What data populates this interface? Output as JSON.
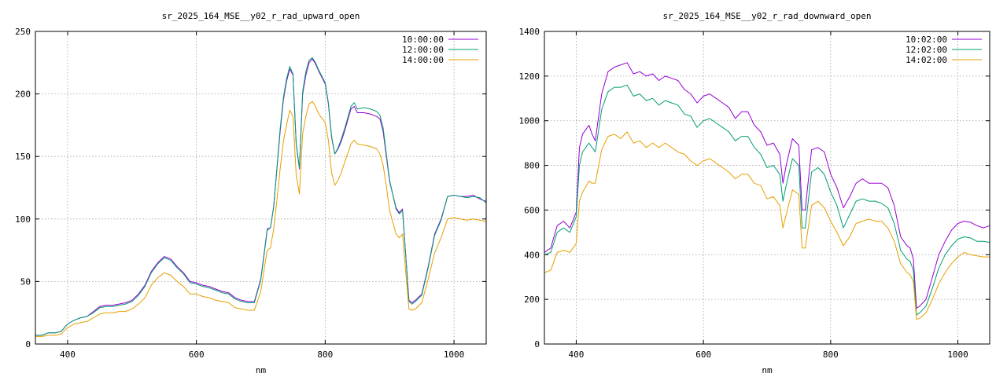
{
  "chart_data": [
    {
      "type": "line",
      "title": "sr_2025_164_MSE__y02_r_rad_upward_open",
      "xlabel": "nm",
      "ylabel": "",
      "xlim": [
        350,
        1050
      ],
      "ylim": [
        0,
        250
      ],
      "xticks": [
        400,
        600,
        800,
        1000
      ],
      "yticks": [
        0,
        50,
        100,
        150,
        200,
        250
      ],
      "grid": true,
      "legend": "top-right",
      "series": [
        {
          "name": "10:00:00",
          "color": "#9400d3",
          "x": [
            350,
            360,
            370,
            380,
            390,
            400,
            410,
            420,
            430,
            440,
            450,
            460,
            470,
            480,
            490,
            500,
            510,
            520,
            530,
            540,
            550,
            560,
            570,
            580,
            590,
            600,
            610,
            620,
            630,
            640,
            650,
            660,
            670,
            680,
            690,
            700,
            705,
            710,
            715,
            720,
            725,
            730,
            735,
            740,
            745,
            750,
            755,
            760,
            765,
            770,
            775,
            780,
            785,
            790,
            800,
            805,
            810,
            815,
            820,
            825,
            830,
            840,
            845,
            850,
            860,
            870,
            880,
            885,
            890,
            895,
            900,
            910,
            915,
            920,
            930,
            935,
            940,
            950,
            960,
            970,
            980,
            990,
            1000,
            1010,
            1020,
            1030,
            1040,
            1050
          ],
          "y": [
            7,
            7,
            9,
            9,
            10,
            16,
            19,
            21,
            22,
            26,
            30,
            31,
            31,
            32,
            33,
            35,
            40,
            47,
            58,
            65,
            70,
            68,
            62,
            57,
            50,
            49,
            47,
            46,
            44,
            42,
            41,
            37,
            35,
            34,
            34,
            52,
            72,
            92,
            93,
            110,
            140,
            170,
            195,
            210,
            220,
            215,
            160,
            140,
            200,
            215,
            225,
            228,
            224,
            218,
            208,
            192,
            165,
            152,
            156,
            162,
            170,
            188,
            190,
            185,
            185,
            184,
            182,
            180,
            170,
            150,
            130,
            109,
            105,
            108,
            35,
            33,
            35,
            40,
            62,
            88,
            100,
            118,
            119,
            118,
            118,
            119,
            116,
            114
          ]
        },
        {
          "name": "12:00:00",
          "color": "#009e73",
          "x": [
            350,
            360,
            370,
            380,
            390,
            400,
            410,
            420,
            430,
            440,
            450,
            460,
            470,
            480,
            490,
            500,
            510,
            520,
            530,
            540,
            550,
            560,
            570,
            580,
            590,
            600,
            610,
            620,
            630,
            640,
            650,
            660,
            670,
            680,
            690,
            700,
            705,
            710,
            715,
            720,
            725,
            730,
            735,
            740,
            745,
            750,
            755,
            760,
            765,
            770,
            775,
            780,
            785,
            790,
            800,
            805,
            810,
            815,
            820,
            825,
            830,
            840,
            845,
            850,
            860,
            870,
            880,
            885,
            890,
            895,
            900,
            910,
            915,
            920,
            930,
            935,
            940,
            950,
            960,
            970,
            980,
            990,
            1000,
            1010,
            1020,
            1030,
            1040,
            1050
          ],
          "y": [
            7,
            7,
            9,
            9,
            10,
            16,
            19,
            21,
            22,
            25,
            29,
            30,
            30,
            31,
            32,
            34,
            39,
            46,
            57,
            64,
            69,
            67,
            61,
            56,
            49,
            48,
            46,
            45,
            43,
            41,
            40,
            36,
            34,
            33,
            33,
            51,
            71,
            91,
            93,
            110,
            141,
            172,
            197,
            212,
            222,
            216,
            160,
            141,
            202,
            218,
            227,
            229,
            225,
            219,
            209,
            193,
            166,
            152,
            157,
            164,
            172,
            190,
            193,
            188,
            189,
            188,
            186,
            183,
            173,
            152,
            131,
            108,
            104,
            107,
            34,
            32,
            34,
            39,
            61,
            87,
            99,
            118,
            119,
            118,
            117,
            118,
            117,
            113
          ]
        },
        {
          "name": "14:00:00",
          "color": "#e69f00",
          "x": [
            350,
            360,
            370,
            380,
            390,
            400,
            410,
            420,
            430,
            440,
            450,
            460,
            470,
            480,
            490,
            500,
            510,
            520,
            530,
            540,
            550,
            560,
            570,
            580,
            590,
            600,
            610,
            620,
            630,
            640,
            650,
            660,
            670,
            680,
            690,
            700,
            705,
            710,
            715,
            720,
            725,
            730,
            735,
            740,
            745,
            750,
            755,
            760,
            765,
            770,
            775,
            780,
            785,
            790,
            800,
            805,
            810,
            815,
            820,
            825,
            830,
            840,
            845,
            850,
            860,
            870,
            880,
            885,
            890,
            895,
            900,
            910,
            915,
            920,
            930,
            935,
            940,
            950,
            960,
            970,
            980,
            990,
            1000,
            1010,
            1020,
            1030,
            1040,
            1050
          ],
          "y": [
            6,
            6,
            7,
            7,
            8,
            13,
            16,
            17,
            18,
            21,
            24,
            25,
            25,
            26,
            26,
            28,
            32,
            37,
            47,
            53,
            57,
            55,
            50,
            46,
            40,
            40,
            38,
            37,
            35,
            34,
            33,
            29,
            28,
            27,
            27,
            42,
            59,
            75,
            77,
            92,
            115,
            140,
            162,
            175,
            187,
            182,
            135,
            120,
            168,
            182,
            192,
            194,
            190,
            184,
            177,
            163,
            137,
            127,
            131,
            137,
            145,
            160,
            163,
            160,
            159,
            158,
            156,
            152,
            143,
            126,
            107,
            88,
            85,
            88,
            28,
            27,
            28,
            33,
            52,
            73,
            85,
            100,
            101,
            100,
            99,
            100,
            99,
            98
          ]
        }
      ]
    },
    {
      "type": "line",
      "title": "sr_2025_164_MSE__y02_r_rad_downward_open",
      "xlabel": "nm",
      "ylabel": "",
      "xlim": [
        350,
        1050
      ],
      "ylim": [
        0,
        1400
      ],
      "xticks": [
        400,
        600,
        800,
        1000
      ],
      "yticks": [
        0,
        200,
        400,
        600,
        800,
        1000,
        1200,
        1400
      ],
      "grid": true,
      "legend": "top-right",
      "series": [
        {
          "name": "10:02:00",
          "color": "#9400d3",
          "x": [
            350,
            360,
            370,
            380,
            390,
            400,
            405,
            410,
            420,
            425,
            430,
            440,
            450,
            460,
            470,
            480,
            490,
            500,
            510,
            520,
            530,
            540,
            550,
            560,
            570,
            580,
            590,
            600,
            610,
            620,
            630,
            640,
            650,
            660,
            670,
            680,
            690,
            700,
            710,
            720,
            725,
            730,
            740,
            750,
            755,
            760,
            770,
            780,
            790,
            800,
            810,
            820,
            830,
            840,
            850,
            860,
            870,
            880,
            890,
            900,
            910,
            920,
            925,
            930,
            935,
            940,
            950,
            960,
            970,
            980,
            990,
            1000,
            1010,
            1020,
            1030,
            1040,
            1050
          ],
          "y": [
            410,
            430,
            530,
            550,
            520,
            590,
            880,
            940,
            980,
            940,
            910,
            1120,
            1220,
            1240,
            1250,
            1260,
            1210,
            1220,
            1200,
            1210,
            1180,
            1200,
            1190,
            1180,
            1140,
            1120,
            1080,
            1110,
            1120,
            1100,
            1080,
            1060,
            1010,
            1040,
            1040,
            980,
            950,
            890,
            900,
            850,
            720,
            800,
            920,
            890,
            600,
            600,
            870,
            880,
            860,
            760,
            700,
            610,
            660,
            720,
            740,
            720,
            720,
            720,
            700,
            620,
            480,
            440,
            430,
            380,
            160,
            170,
            200,
            300,
            400,
            460,
            510,
            540,
            550,
            545,
            530,
            520,
            530
          ]
        },
        {
          "name": "12:02:00",
          "color": "#009e73",
          "x": [
            350,
            360,
            370,
            380,
            390,
            400,
            405,
            410,
            420,
            425,
            430,
            440,
            450,
            460,
            470,
            480,
            490,
            500,
            510,
            520,
            530,
            540,
            550,
            560,
            570,
            580,
            590,
            600,
            610,
            620,
            630,
            640,
            650,
            660,
            670,
            680,
            690,
            700,
            710,
            720,
            725,
            730,
            740,
            750,
            755,
            760,
            770,
            780,
            790,
            800,
            810,
            820,
            830,
            840,
            850,
            860,
            870,
            880,
            890,
            900,
            910,
            920,
            925,
            930,
            935,
            940,
            950,
            960,
            970,
            980,
            990,
            1000,
            1010,
            1020,
            1030,
            1040,
            1050
          ],
          "y": [
            400,
            410,
            500,
            520,
            500,
            570,
            800,
            860,
            900,
            880,
            860,
            1050,
            1130,
            1150,
            1150,
            1160,
            1110,
            1120,
            1090,
            1100,
            1070,
            1090,
            1080,
            1070,
            1030,
            1020,
            970,
            1000,
            1010,
            990,
            970,
            950,
            910,
            930,
            930,
            880,
            850,
            790,
            800,
            760,
            640,
            710,
            830,
            800,
            520,
            520,
            770,
            790,
            760,
            680,
            620,
            520,
            580,
            640,
            650,
            640,
            640,
            630,
            610,
            540,
            420,
            380,
            370,
            330,
            130,
            140,
            170,
            250,
            340,
            400,
            440,
            470,
            480,
            475,
            460,
            460,
            455
          ]
        },
        {
          "name": "14:02:00",
          "color": "#e69f00",
          "x": [
            350,
            360,
            370,
            380,
            390,
            400,
            405,
            410,
            420,
            425,
            430,
            440,
            450,
            460,
            470,
            480,
            490,
            500,
            510,
            520,
            530,
            540,
            550,
            560,
            570,
            580,
            590,
            600,
            610,
            620,
            630,
            640,
            650,
            660,
            670,
            680,
            690,
            700,
            710,
            720,
            725,
            730,
            740,
            750,
            755,
            760,
            770,
            780,
            790,
            800,
            810,
            820,
            830,
            840,
            850,
            860,
            870,
            880,
            890,
            900,
            910,
            920,
            925,
            930,
            935,
            940,
            950,
            960,
            970,
            980,
            990,
            1000,
            1010,
            1020,
            1030,
            1040,
            1050
          ],
          "y": [
            320,
            330,
            410,
            420,
            410,
            450,
            640,
            680,
            730,
            720,
            720,
            870,
            930,
            940,
            920,
            950,
            900,
            910,
            880,
            900,
            880,
            900,
            880,
            860,
            850,
            820,
            800,
            820,
            830,
            810,
            790,
            770,
            740,
            760,
            760,
            720,
            710,
            650,
            660,
            620,
            520,
            580,
            690,
            670,
            430,
            430,
            620,
            640,
            610,
            550,
            500,
            440,
            480,
            540,
            550,
            560,
            550,
            550,
            520,
            460,
            360,
            320,
            310,
            280,
            110,
            115,
            140,
            200,
            270,
            320,
            360,
            390,
            410,
            400,
            395,
            390,
            390
          ]
        }
      ]
    }
  ]
}
